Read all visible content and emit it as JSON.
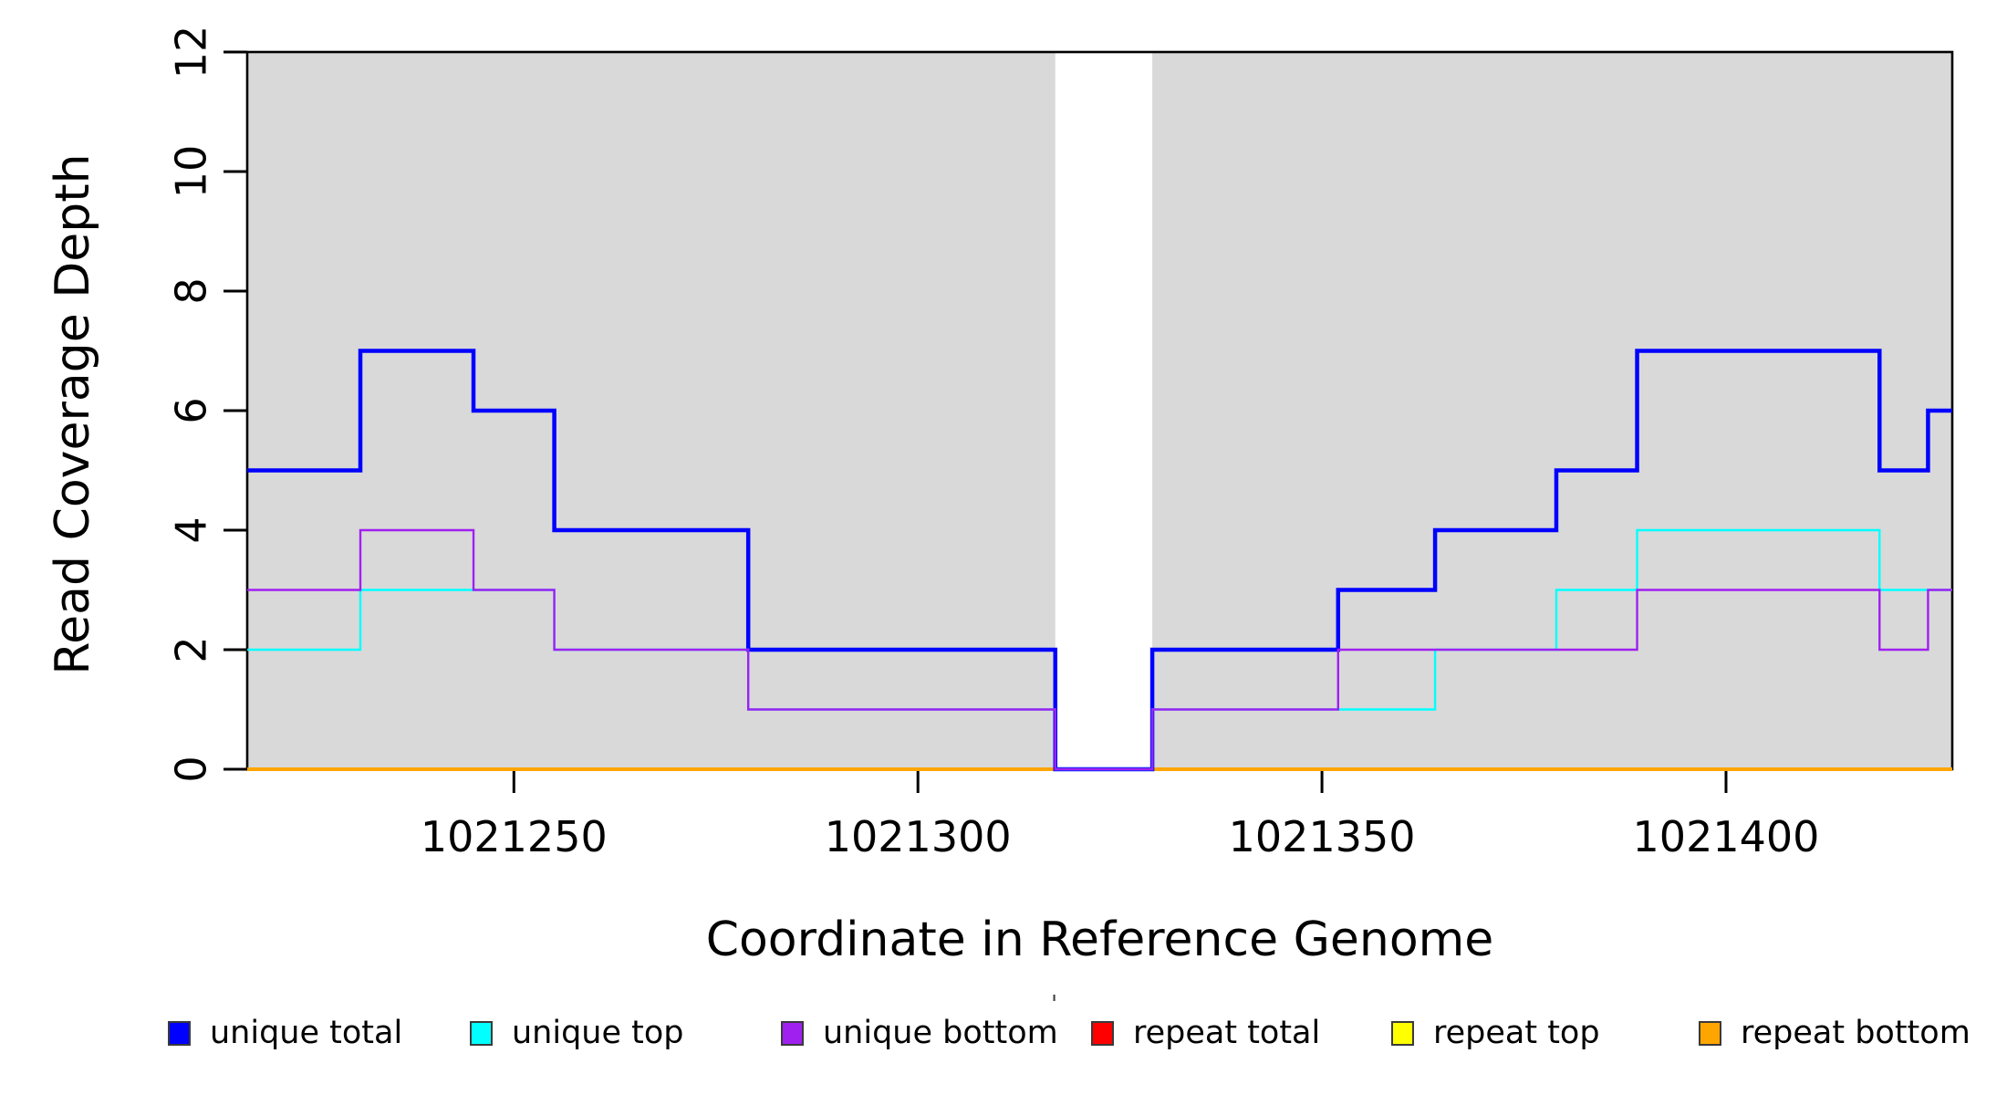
{
  "figure": {
    "title": ""
  },
  "chart_data": {
    "type": "line",
    "subtype": "step-coverage",
    "title": "",
    "xlabel": "Coordinate in Reference Genome",
    "ylabel": "Read Coverage Depth",
    "x_domain": [
      1021217,
      1021428
    ],
    "y_domain": [
      0,
      12
    ],
    "x_ticks": [
      1021250,
      1021300,
      1021350,
      1021400
    ],
    "y_ticks": [
      0,
      2,
      4,
      6,
      8,
      10,
      12
    ],
    "grid": false,
    "background_shading": {
      "color": "#d9d9d9",
      "regions": [
        [
          1021217,
          1021317
        ],
        [
          1021329,
          1021428
        ]
      ]
    },
    "unshaded_gap": [
      1021317,
      1021329
    ],
    "series": [
      {
        "name": "repeat total",
        "color": "#ff0000",
        "width": 4,
        "steps": [
          [
            1021217,
            0
          ]
        ]
      },
      {
        "name": "repeat top",
        "color": "#ffff00",
        "width": 4,
        "steps": [
          [
            1021217,
            0
          ]
        ]
      },
      {
        "name": "repeat bottom",
        "color": "#ffa500",
        "width": 4,
        "steps": [
          [
            1021217,
            0
          ]
        ]
      },
      {
        "name": "unique total",
        "color": "#0000ff",
        "width": 4.5,
        "steps": [
          [
            1021217,
            5
          ],
          [
            1021231,
            7
          ],
          [
            1021245,
            6
          ],
          [
            1021255,
            4
          ],
          [
            1021279,
            2
          ],
          [
            1021317,
            0
          ],
          [
            1021329,
            2
          ],
          [
            1021352,
            3
          ],
          [
            1021364,
            4
          ],
          [
            1021379,
            5
          ],
          [
            1021389,
            7
          ],
          [
            1021419,
            5
          ],
          [
            1021425,
            6
          ]
        ]
      },
      {
        "name": "unique top",
        "color": "#00ffff",
        "width": 2.4,
        "steps": [
          [
            1021217,
            2
          ],
          [
            1021231,
            3
          ],
          [
            1021255,
            2
          ],
          [
            1021279,
            1
          ],
          [
            1021317,
            0
          ],
          [
            1021329,
            1
          ],
          [
            1021364,
            2
          ],
          [
            1021379,
            3
          ],
          [
            1021389,
            4
          ],
          [
            1021419,
            3
          ]
        ]
      },
      {
        "name": "unique bottom",
        "color": "#a020f0",
        "width": 2.4,
        "steps": [
          [
            1021217,
            3
          ],
          [
            1021231,
            4
          ],
          [
            1021245,
            3
          ],
          [
            1021255,
            2
          ],
          [
            1021279,
            1
          ],
          [
            1021317,
            0
          ],
          [
            1021329,
            1
          ],
          [
            1021352,
            2
          ],
          [
            1021389,
            3
          ],
          [
            1021419,
            2
          ],
          [
            1021425,
            3
          ]
        ]
      }
    ]
  },
  "legend": {
    "entries": [
      {
        "label": "unique total",
        "color": "#0000ff"
      },
      {
        "label": "unique top",
        "color": "#00ffff"
      },
      {
        "label": "unique bottom",
        "color": "#a020f0"
      },
      {
        "label": "repeat total",
        "color": "#ff0000"
      },
      {
        "label": "repeat top",
        "color": "#ffff00"
      },
      {
        "label": "repeat bottom",
        "color": "#ffa500"
      }
    ],
    "artifact_mark": "'"
  }
}
